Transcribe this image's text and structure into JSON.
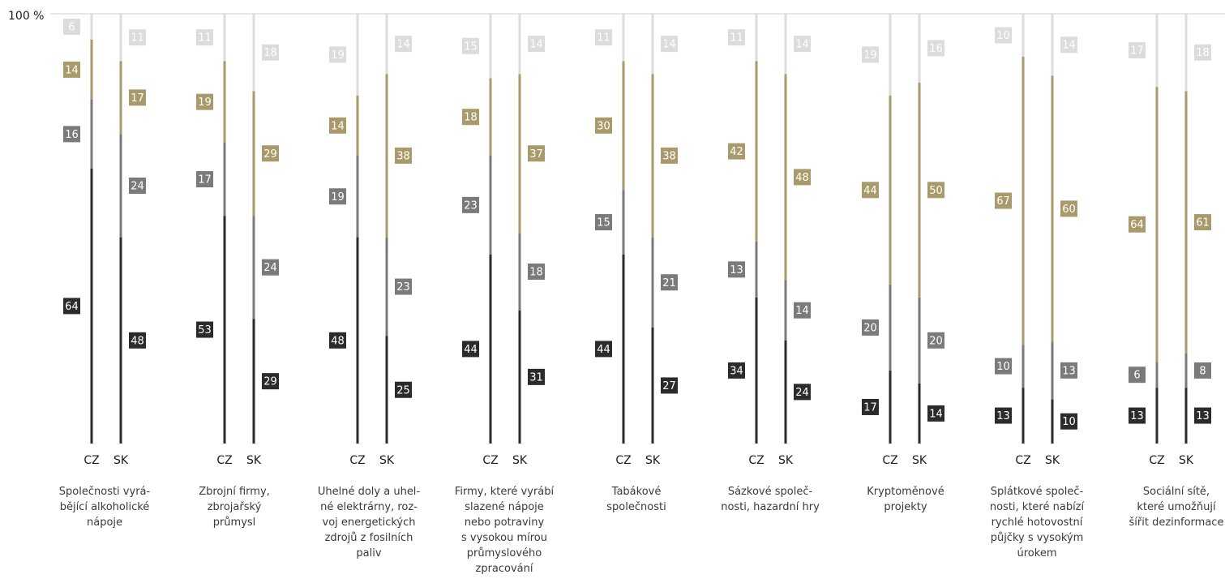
{
  "chart_data": {
    "type": "bar",
    "stacked": true,
    "orientation": "vertical",
    "y_tick_label": "100 %",
    "ylim": [
      0,
      100
    ],
    "grid": false,
    "legend": "none",
    "group_labels": [
      "CZ",
      "SK"
    ],
    "colors": {
      "dark": "#2b2b2b",
      "gray": "#7a7a7a",
      "gold": "#a89a6a",
      "light": "#dcdcdc"
    },
    "series": [
      {
        "key": "dark",
        "values_cz": [
          64,
          53,
          48,
          44,
          44,
          34,
          17,
          13,
          13
        ],
        "values_sk": [
          48,
          29,
          25,
          31,
          27,
          24,
          14,
          10,
          13
        ]
      },
      {
        "key": "gray",
        "values_cz": [
          16,
          17,
          19,
          23,
          15,
          13,
          20,
          10,
          6
        ],
        "values_sk": [
          24,
          24,
          23,
          18,
          21,
          14,
          20,
          13,
          8
        ]
      },
      {
        "key": "gold",
        "values_cz": [
          14,
          19,
          14,
          18,
          30,
          42,
          44,
          67,
          64
        ],
        "values_sk": [
          17,
          29,
          38,
          37,
          38,
          48,
          50,
          60,
          61
        ]
      },
      {
        "key": "light",
        "values_cz": [
          6,
          11,
          19,
          15,
          11,
          11,
          19,
          10,
          17
        ],
        "values_sk": [
          11,
          18,
          14,
          14,
          14,
          14,
          16,
          14,
          18
        ]
      }
    ],
    "categories": [
      [
        "Společnosti vyrá-",
        "bějící alkoholické",
        "nápoje"
      ],
      [
        "Zbrojní firmy,",
        "zbrojařský",
        "průmysl"
      ],
      [
        "Uhelné doly a uhel-",
        "né elektrárny, roz-",
        "voj energetických",
        "zdrojů z fosilních",
        "paliv"
      ],
      [
        "Firmy, které vyrábí",
        "slazené nápoje",
        "nebo potraviny",
        "s vysokou mírou",
        "průmyslového",
        "zpracování"
      ],
      [
        "Tabákové",
        "společnosti"
      ],
      [
        "Sázkové společ-",
        "nosti, hazardní hry"
      ],
      [
        "Kryptoměnové",
        "projekty"
      ],
      [
        "Splátkové společ-",
        "nosti, které nabízí",
        "rychlé hotovostní",
        "půjčky s vysokým",
        "úrokem"
      ],
      [
        "Sociální sítě,",
        "které umožňují",
        "šířit dezinformace"
      ]
    ]
  }
}
